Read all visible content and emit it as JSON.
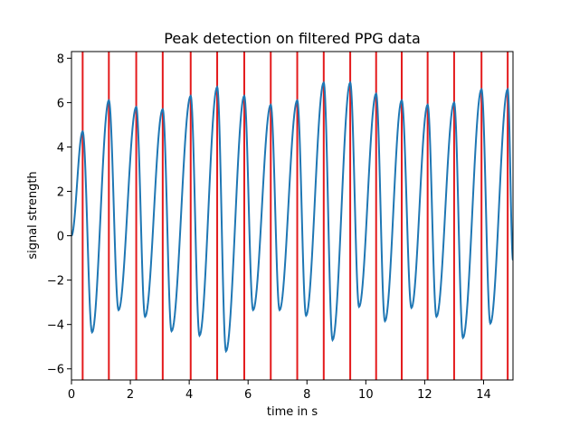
{
  "chart_data": {
    "type": "line",
    "title": "Peak detection on filtered PPG data",
    "xlabel": "time in s",
    "ylabel": "signal strength",
    "xlim": [
      0,
      15
    ],
    "ylim": [
      -6.5,
      8.3
    ],
    "xticks": [
      0,
      2,
      4,
      6,
      8,
      10,
      12,
      14
    ],
    "yticks": [
      -6,
      -4,
      -2,
      0,
      2,
      4,
      6,
      8
    ],
    "grid": false,
    "colors": {
      "signal": "#1f77b4",
      "peaks": "#e41a1c"
    },
    "peaks": [
      {
        "t": 0.38,
        "v": 4.7
      },
      {
        "t": 1.27,
        "v": 6.1
      },
      {
        "t": 2.2,
        "v": 5.8
      },
      {
        "t": 3.1,
        "v": 5.7
      },
      {
        "t": 4.05,
        "v": 6.3
      },
      {
        "t": 4.95,
        "v": 6.7
      },
      {
        "t": 5.87,
        "v": 6.3
      },
      {
        "t": 6.77,
        "v": 5.9
      },
      {
        "t": 7.67,
        "v": 6.1
      },
      {
        "t": 8.57,
        "v": 6.9
      },
      {
        "t": 9.47,
        "v": 6.9
      },
      {
        "t": 10.35,
        "v": 6.4
      },
      {
        "t": 11.22,
        "v": 6.1
      },
      {
        "t": 12.1,
        "v": 5.9
      },
      {
        "t": 13.0,
        "v": 6.0
      },
      {
        "t": 13.93,
        "v": 6.6
      },
      {
        "t": 14.82,
        "v": 6.6
      }
    ],
    "troughs": [
      {
        "t": 0.7,
        "v": -4.35
      },
      {
        "t": 1.6,
        "v": -3.35
      },
      {
        "t": 2.5,
        "v": -3.65
      },
      {
        "t": 3.4,
        "v": -4.3
      },
      {
        "t": 4.35,
        "v": -4.5
      },
      {
        "t": 5.25,
        "v": -5.2
      },
      {
        "t": 6.17,
        "v": -3.35
      },
      {
        "t": 7.07,
        "v": -3.35
      },
      {
        "t": 7.97,
        "v": -3.6
      },
      {
        "t": 8.87,
        "v": -4.7
      },
      {
        "t": 9.77,
        "v": -3.2
      },
      {
        "t": 10.65,
        "v": -3.85
      },
      {
        "t": 11.55,
        "v": -3.25
      },
      {
        "t": 12.4,
        "v": -3.65
      },
      {
        "t": 13.3,
        "v": -4.6
      },
      {
        "t": 14.23,
        "v": -3.95
      }
    ],
    "start": {
      "t": 0.0,
      "v": 0.0
    },
    "end": {
      "t": 15.0,
      "v": -1.1
    }
  }
}
